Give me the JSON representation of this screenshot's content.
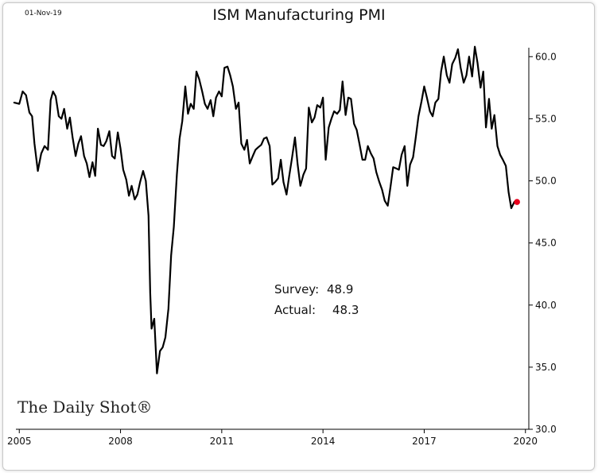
{
  "date_label": "01-Nov-19",
  "logo": "The Daily Shot®",
  "colors": {
    "line": "#000000",
    "marker": "#e8001c",
    "axis": "#000000"
  },
  "chart_data": {
    "type": "line",
    "title": "ISM Manufacturing PMI",
    "xlabel": "",
    "ylabel": "",
    "xlim": [
      2004.9,
      2020.1
    ],
    "ylim": [
      30,
      62
    ],
    "grid": false,
    "x_ticks": [
      2005,
      2008,
      2011,
      2014,
      2017,
      2020
    ],
    "x_tick_labels": [
      "2005",
      "2008",
      "2011",
      "2014",
      "2017",
      "2020"
    ],
    "y_ticks": [
      30,
      35,
      40,
      45,
      50,
      55,
      60
    ],
    "y_tick_labels": [
      "30.0",
      "35.0",
      "40.0",
      "45.0",
      "50.0",
      "55.0",
      "60.0"
    ],
    "annotation": {
      "survey_label": "Survey:",
      "survey_value": "48.9",
      "actual_label": "Actual:",
      "actual_value": "48.3"
    },
    "highlight_point": {
      "x": 2019.75,
      "y": 48.3
    },
    "series": [
      {
        "name": "ISM Manufacturing PMI",
        "points": [
          [
            2004.85,
            56.3
          ],
          [
            2005.0,
            56.2
          ],
          [
            2005.1,
            57.2
          ],
          [
            2005.2,
            56.9
          ],
          [
            2005.3,
            55.5
          ],
          [
            2005.38,
            55.2
          ],
          [
            2005.45,
            53.0
          ],
          [
            2005.55,
            50.8
          ],
          [
            2005.65,
            52.2
          ],
          [
            2005.75,
            52.8
          ],
          [
            2005.85,
            52.5
          ],
          [
            2005.93,
            56.5
          ],
          [
            2006.0,
            57.2
          ],
          [
            2006.08,
            56.8
          ],
          [
            2006.17,
            55.2
          ],
          [
            2006.25,
            55.0
          ],
          [
            2006.33,
            55.8
          ],
          [
            2006.42,
            54.2
          ],
          [
            2006.5,
            55.1
          ],
          [
            2006.58,
            53.5
          ],
          [
            2006.67,
            52.0
          ],
          [
            2006.75,
            53.0
          ],
          [
            2006.83,
            53.6
          ],
          [
            2006.92,
            52.0
          ],
          [
            2007.0,
            51.4
          ],
          [
            2007.08,
            50.3
          ],
          [
            2007.17,
            51.5
          ],
          [
            2007.25,
            50.4
          ],
          [
            2007.33,
            54.2
          ],
          [
            2007.42,
            52.9
          ],
          [
            2007.5,
            52.8
          ],
          [
            2007.58,
            53.2
          ],
          [
            2007.67,
            54.0
          ],
          [
            2007.75,
            52.0
          ],
          [
            2007.83,
            51.8
          ],
          [
            2007.92,
            53.9
          ],
          [
            2008.0,
            52.6
          ],
          [
            2008.08,
            50.9
          ],
          [
            2008.17,
            50.1
          ],
          [
            2008.25,
            48.8
          ],
          [
            2008.33,
            49.6
          ],
          [
            2008.42,
            48.5
          ],
          [
            2008.5,
            48.9
          ],
          [
            2008.58,
            49.9
          ],
          [
            2008.67,
            50.8
          ],
          [
            2008.75,
            50.0
          ],
          [
            2008.83,
            47.2
          ],
          [
            2008.88,
            41.0
          ],
          [
            2008.92,
            38.1
          ],
          [
            2009.0,
            38.9
          ],
          [
            2009.08,
            34.5
          ],
          [
            2009.17,
            36.3
          ],
          [
            2009.25,
            36.6
          ],
          [
            2009.33,
            37.4
          ],
          [
            2009.42,
            39.7
          ],
          [
            2009.5,
            44.0
          ],
          [
            2009.58,
            46.3
          ],
          [
            2009.67,
            50.5
          ],
          [
            2009.75,
            53.4
          ],
          [
            2009.83,
            54.8
          ],
          [
            2009.92,
            57.6
          ],
          [
            2010.0,
            55.4
          ],
          [
            2010.08,
            56.2
          ],
          [
            2010.17,
            55.8
          ],
          [
            2010.25,
            58.8
          ],
          [
            2010.33,
            58.2
          ],
          [
            2010.42,
            57.2
          ],
          [
            2010.5,
            56.2
          ],
          [
            2010.58,
            55.8
          ],
          [
            2010.67,
            56.5
          ],
          [
            2010.75,
            55.2
          ],
          [
            2010.83,
            56.7
          ],
          [
            2010.92,
            57.2
          ],
          [
            2011.0,
            56.8
          ],
          [
            2011.08,
            59.1
          ],
          [
            2011.17,
            59.2
          ],
          [
            2011.25,
            58.5
          ],
          [
            2011.33,
            57.6
          ],
          [
            2011.42,
            55.8
          ],
          [
            2011.5,
            56.3
          ],
          [
            2011.58,
            53.0
          ],
          [
            2011.67,
            52.5
          ],
          [
            2011.75,
            53.3
          ],
          [
            2011.83,
            51.4
          ],
          [
            2011.92,
            52.0
          ],
          [
            2012.0,
            52.5
          ],
          [
            2012.08,
            52.7
          ],
          [
            2012.17,
            52.9
          ],
          [
            2012.25,
            53.4
          ],
          [
            2012.33,
            53.5
          ],
          [
            2012.42,
            52.8
          ],
          [
            2012.5,
            49.7
          ],
          [
            2012.58,
            49.9
          ],
          [
            2012.67,
            50.2
          ],
          [
            2012.75,
            51.7
          ],
          [
            2012.83,
            49.9
          ],
          [
            2012.92,
            48.9
          ],
          [
            2013.0,
            50.4
          ],
          [
            2013.08,
            51.8
          ],
          [
            2013.17,
            53.5
          ],
          [
            2013.25,
            51.3
          ],
          [
            2013.33,
            49.6
          ],
          [
            2013.42,
            50.5
          ],
          [
            2013.5,
            51.0
          ],
          [
            2013.58,
            55.9
          ],
          [
            2013.67,
            54.7
          ],
          [
            2013.75,
            55.1
          ],
          [
            2013.83,
            56.1
          ],
          [
            2013.92,
            55.9
          ],
          [
            2014.0,
            56.7
          ],
          [
            2014.08,
            51.7
          ],
          [
            2014.17,
            54.3
          ],
          [
            2014.25,
            55.0
          ],
          [
            2014.33,
            55.6
          ],
          [
            2014.42,
            55.4
          ],
          [
            2014.5,
            55.7
          ],
          [
            2014.58,
            58.0
          ],
          [
            2014.67,
            55.3
          ],
          [
            2014.75,
            56.7
          ],
          [
            2014.83,
            56.6
          ],
          [
            2014.92,
            54.6
          ],
          [
            2015.0,
            54.1
          ],
          [
            2015.08,
            53.0
          ],
          [
            2015.17,
            51.7
          ],
          [
            2015.25,
            51.7
          ],
          [
            2015.33,
            52.8
          ],
          [
            2015.42,
            52.2
          ],
          [
            2015.5,
            51.8
          ],
          [
            2015.58,
            50.7
          ],
          [
            2015.67,
            49.9
          ],
          [
            2015.75,
            49.3
          ],
          [
            2015.83,
            48.4
          ],
          [
            2015.92,
            48.0
          ],
          [
            2016.0,
            49.5
          ],
          [
            2016.08,
            51.1
          ],
          [
            2016.17,
            51.0
          ],
          [
            2016.25,
            50.9
          ],
          [
            2016.33,
            52.1
          ],
          [
            2016.42,
            52.8
          ],
          [
            2016.5,
            49.6
          ],
          [
            2016.58,
            51.3
          ],
          [
            2016.67,
            51.9
          ],
          [
            2016.75,
            53.5
          ],
          [
            2016.83,
            55.2
          ],
          [
            2016.92,
            56.4
          ],
          [
            2017.0,
            57.6
          ],
          [
            2017.08,
            56.7
          ],
          [
            2017.17,
            55.6
          ],
          [
            2017.25,
            55.2
          ],
          [
            2017.33,
            56.3
          ],
          [
            2017.42,
            56.6
          ],
          [
            2017.5,
            58.8
          ],
          [
            2017.58,
            60.0
          ],
          [
            2017.67,
            58.5
          ],
          [
            2017.75,
            57.9
          ],
          [
            2017.83,
            59.4
          ],
          [
            2017.92,
            59.9
          ],
          [
            2018.0,
            60.6
          ],
          [
            2018.08,
            59.1
          ],
          [
            2018.17,
            57.9
          ],
          [
            2018.25,
            58.5
          ],
          [
            2018.33,
            60.0
          ],
          [
            2018.42,
            58.4
          ],
          [
            2018.5,
            60.8
          ],
          [
            2018.58,
            59.5
          ],
          [
            2018.67,
            57.5
          ],
          [
            2018.75,
            58.8
          ],
          [
            2018.83,
            54.3
          ],
          [
            2018.92,
            56.6
          ],
          [
            2019.0,
            54.2
          ],
          [
            2019.08,
            55.3
          ],
          [
            2019.17,
            52.8
          ],
          [
            2019.25,
            52.1
          ],
          [
            2019.33,
            51.7
          ],
          [
            2019.42,
            51.2
          ],
          [
            2019.5,
            49.1
          ],
          [
            2019.58,
            47.8
          ],
          [
            2019.67,
            48.3
          ]
        ]
      }
    ]
  }
}
